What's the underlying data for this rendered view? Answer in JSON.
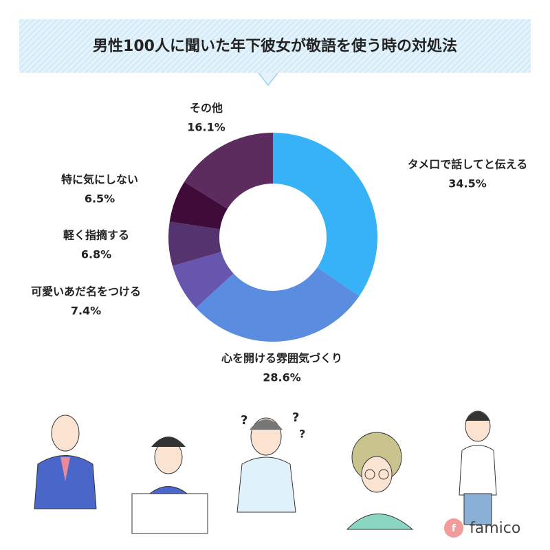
{
  "chart_data": {
    "type": "donut",
    "title": "男性100人に聞いた年下彼女が敬語を使う時の対処法",
    "categories": [
      "タメ口で話してと伝える",
      "心を開ける雰囲気づくり",
      "可愛いあだ名をつける",
      "軽く指摘する",
      "特に気にしない",
      "その他"
    ],
    "values": [
      34.5,
      28.6,
      7.4,
      6.8,
      6.5,
      16.1
    ],
    "value_labels": [
      "34.5%",
      "28.6%",
      "7.4%",
      "6.8%",
      "6.5%",
      "16.1%"
    ],
    "colors": [
      "#38b2f6",
      "#5a8ce0",
      "#6756ad",
      "#55336f",
      "#3f0c39",
      "#5c2c5f"
    ]
  },
  "logo": "famico"
}
